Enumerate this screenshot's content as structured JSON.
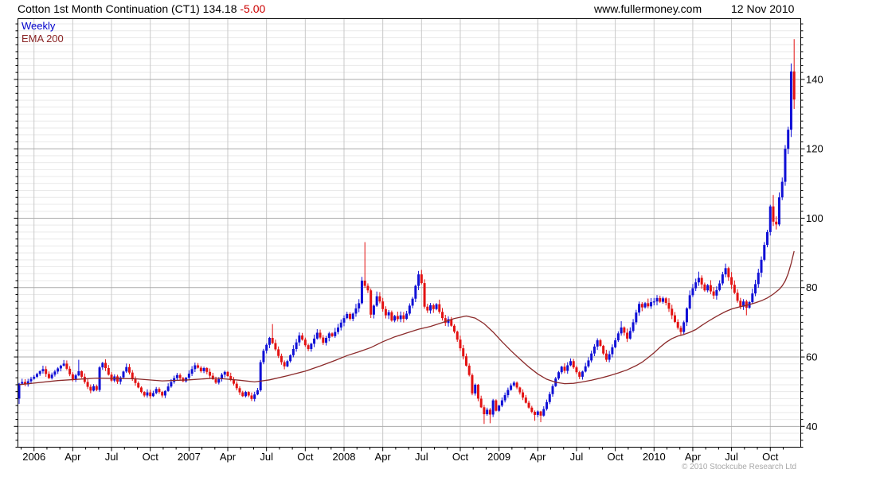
{
  "header": {
    "title": "Cotton 1st Month Continuation (CT1)",
    "last_price": "134.18",
    "change": "-5.00",
    "website": "www.fullermoney.com",
    "date": "12 Nov 2010"
  },
  "legend": {
    "timeframe": "Weekly",
    "overlay": "EMA 200"
  },
  "attribution": "© 2010 Stockcube Research Ltd",
  "colors": {
    "up_candle": "#1010d6",
    "down_candle": "#e31212",
    "ema_line": "#8b2a2a",
    "grid_major_h": "#ababab",
    "grid_minor_h": "#e9e9e9",
    "grid_vert": "#c9c9c9",
    "plot_border": "#000000",
    "axis_text": "#000000",
    "change_text": "#cc0000",
    "weekly_text": "#0000cc",
    "ema_text": "#8b2525",
    "attrib_text": "#a8a8a8"
  },
  "chart_data": {
    "type": "candlestick",
    "period": "weekly",
    "title": "Cotton 1st Month Continuation (CT1)",
    "last_close": 134.18,
    "change": -5.0,
    "y_axis": {
      "min": 34,
      "max": 157.5,
      "label_ticks": [
        40,
        60,
        80,
        100,
        120,
        140
      ],
      "minor_step": 2,
      "side": "right"
    },
    "x_ticks": [
      {
        "label": "2006",
        "week": 5
      },
      {
        "label": "Apr",
        "week": 18
      },
      {
        "label": "Jul",
        "week": 31
      },
      {
        "label": "Oct",
        "week": 44
      },
      {
        "label": "2007",
        "week": 57
      },
      {
        "label": "Apr",
        "week": 70
      },
      {
        "label": "Jul",
        "week": 83
      },
      {
        "label": "Oct",
        "week": 96
      },
      {
        "label": "2008",
        "week": 109
      },
      {
        "label": "Apr",
        "week": 122
      },
      {
        "label": "Jul",
        "week": 135
      },
      {
        "label": "Oct",
        "week": 148
      },
      {
        "label": "2009",
        "week": 161
      },
      {
        "label": "Apr",
        "week": 174
      },
      {
        "label": "Jul",
        "week": 187
      },
      {
        "label": "Oct",
        "week": 200
      },
      {
        "label": "2010",
        "week": 213
      },
      {
        "label": "Apr",
        "week": 226
      },
      {
        "label": "Jul",
        "week": 239
      },
      {
        "label": "Oct",
        "week": 252
      }
    ],
    "first_open": 48.0,
    "weekly_closes": [
      52.3,
      52.8,
      52.1,
      53.0,
      53.7,
      54.3,
      55.1,
      55.9,
      56.5,
      55.1,
      53.9,
      54.9,
      55.8,
      56.7,
      57.5,
      58.1,
      56.6,
      55.0,
      53.6,
      54.7,
      55.9,
      54.3,
      52.8,
      51.4,
      50.3,
      51.6,
      50.5,
      57.0,
      58.3,
      56.8,
      54.9,
      53.2,
      54.4,
      52.9,
      54.1,
      55.8,
      57.1,
      55.5,
      53.8,
      52.5,
      51.2,
      49.9,
      48.9,
      49.8,
      48.7,
      49.6,
      50.8,
      49.9,
      48.9,
      50.2,
      51.5,
      52.8,
      53.9,
      54.8,
      53.9,
      53.0,
      54.0,
      55.2,
      56.5,
      57.6,
      56.9,
      55.9,
      56.8,
      55.7,
      54.6,
      53.6,
      52.6,
      53.6,
      54.9,
      55.7,
      54.5,
      53.4,
      52.3,
      51.0,
      49.8,
      48.7,
      49.9,
      48.9,
      47.9,
      49.2,
      50.4,
      58.5,
      61.8,
      63.5,
      65.5,
      64.0,
      62.2,
      60.3,
      58.5,
      57.3,
      58.8,
      60.5,
      62.3,
      64.2,
      66.2,
      65.0,
      63.4,
      62.3,
      63.8,
      65.3,
      67.0,
      65.6,
      64.1,
      65.5,
      66.8,
      66.0,
      67.2,
      68.5,
      69.9,
      71.2,
      72.4,
      71.0,
      72.5,
      74.0,
      75.5,
      82.0,
      80.5,
      79.2,
      72.2,
      74.8,
      77.5,
      76.0,
      73.8,
      72.0,
      72.9,
      70.5,
      71.8,
      70.9,
      72.0,
      71.0,
      72.5,
      74.8,
      76.8,
      80.5,
      83.8,
      81.3,
      74.5,
      73.4,
      74.9,
      73.8,
      75.2,
      73.0,
      71.2,
      69.8,
      70.9,
      69.0,
      67.3,
      65.0,
      62.5,
      60.2,
      57.5,
      54.8,
      49.5,
      52.0,
      48.0,
      45.5,
      43.5,
      44.8,
      43.4,
      47.5,
      44.5,
      46.0,
      47.5,
      49.0,
      50.5,
      51.8,
      52.6,
      51.2,
      49.8,
      48.3,
      46.8,
      45.4,
      44.2,
      43.3,
      44.3,
      43.1,
      45.0,
      47.0,
      49.3,
      51.6,
      53.8,
      55.6,
      57.2,
      56.0,
      57.6,
      58.8,
      57.0,
      55.6,
      54.3,
      55.8,
      57.3,
      59.0,
      61.0,
      63.0,
      64.8,
      63.2,
      61.0,
      59.2,
      60.8,
      62.8,
      64.8,
      66.8,
      68.5,
      67.0,
      65.3,
      67.5,
      70.0,
      72.8,
      75.3,
      74.3,
      75.5,
      74.6,
      75.8,
      76.0,
      77.0,
      75.9,
      76.9,
      75.6,
      73.9,
      72.0,
      70.1,
      68.4,
      67.2,
      70.0,
      74.0,
      77.8,
      79.8,
      81.5,
      82.8,
      80.9,
      79.2,
      80.7,
      78.9,
      77.7,
      79.3,
      81.2,
      83.8,
      85.6,
      83.0,
      80.8,
      78.5,
      76.2,
      74.5,
      76.0,
      74.2,
      75.8,
      78.3,
      81.0,
      84.3,
      88.0,
      92.3,
      96.0,
      103.4,
      99.0,
      98.2,
      106.0,
      110.5,
      120.0,
      125.5,
      142.3,
      134.2
    ],
    "wick_overrides": {
      "0": {
        "low": 46.5
      },
      "20": {
        "high": 59.2
      },
      "85": {
        "high": 69.5
      },
      "116": {
        "high": 93.1
      },
      "134": {
        "high": 84.8
      },
      "156": {
        "low": 40.7
      },
      "158": {
        "low": 40.9
      },
      "173": {
        "low": 41.6
      },
      "175": {
        "low": 41.2
      },
      "185": {
        "high": 59.6
      },
      "202": {
        "high": 70.3
      },
      "222": {
        "low": 66.2
      },
      "228": {
        "high": 84.6
      },
      "237": {
        "high": 86.9
      },
      "244": {
        "low": 72.0
      },
      "253": {
        "high": 106.7
      },
      "259": {
        "high": 144.6
      },
      "260": {
        "high": 151.6,
        "low": 131.5
      }
    },
    "ema_200": [
      [
        0,
        52.0
      ],
      [
        13,
        53.2
      ],
      [
        26,
        53.9
      ],
      [
        39,
        53.7
      ],
      [
        48,
        53.1
      ],
      [
        57,
        53.4
      ],
      [
        66,
        53.9
      ],
      [
        74,
        53.3
      ],
      [
        79,
        52.8
      ],
      [
        84,
        53.4
      ],
      [
        90,
        54.6
      ],
      [
        96,
        55.9
      ],
      [
        101,
        57.4
      ],
      [
        106,
        59.0
      ],
      [
        110,
        60.4
      ],
      [
        114,
        61.5
      ],
      [
        118,
        62.7
      ],
      [
        122,
        64.4
      ],
      [
        126,
        65.8
      ],
      [
        130,
        66.9
      ],
      [
        134,
        68.0
      ],
      [
        138,
        68.8
      ],
      [
        142,
        69.9
      ],
      [
        146,
        71.1
      ],
      [
        150,
        71.8
      ],
      [
        153,
        71.2
      ],
      [
        156,
        69.6
      ],
      [
        159,
        67.2
      ],
      [
        162,
        64.4
      ],
      [
        165,
        61.8
      ],
      [
        168,
        59.4
      ],
      [
        171,
        57.1
      ],
      [
        174,
        55.1
      ],
      [
        177,
        53.6
      ],
      [
        180,
        52.7
      ],
      [
        183,
        52.3
      ],
      [
        186,
        52.4
      ],
      [
        189,
        52.8
      ],
      [
        192,
        53.3
      ],
      [
        195,
        53.9
      ],
      [
        198,
        54.6
      ],
      [
        201,
        55.4
      ],
      [
        204,
        56.3
      ],
      [
        207,
        57.5
      ],
      [
        209,
        58.5
      ],
      [
        211,
        59.8
      ],
      [
        213,
        61.2
      ],
      [
        215,
        62.8
      ],
      [
        217,
        64.2
      ],
      [
        219,
        65.3
      ],
      [
        221,
        66.0
      ],
      [
        223,
        66.5
      ],
      [
        225,
        67.1
      ],
      [
        227,
        67.9
      ],
      [
        229,
        69.1
      ],
      [
        231,
        70.2
      ],
      [
        233,
        71.2
      ],
      [
        235,
        72.2
      ],
      [
        237,
        73.1
      ],
      [
        239,
        73.8
      ],
      [
        241,
        74.3
      ],
      [
        243,
        74.7
      ],
      [
        245,
        75.1
      ],
      [
        247,
        75.6
      ],
      [
        249,
        76.2
      ],
      [
        251,
        77.0
      ],
      [
        253,
        78.1
      ],
      [
        255,
        79.5
      ],
      [
        256,
        80.5
      ],
      [
        257,
        81.9
      ],
      [
        258,
        84.0
      ],
      [
        259,
        87.0
      ],
      [
        260,
        90.5
      ]
    ]
  }
}
